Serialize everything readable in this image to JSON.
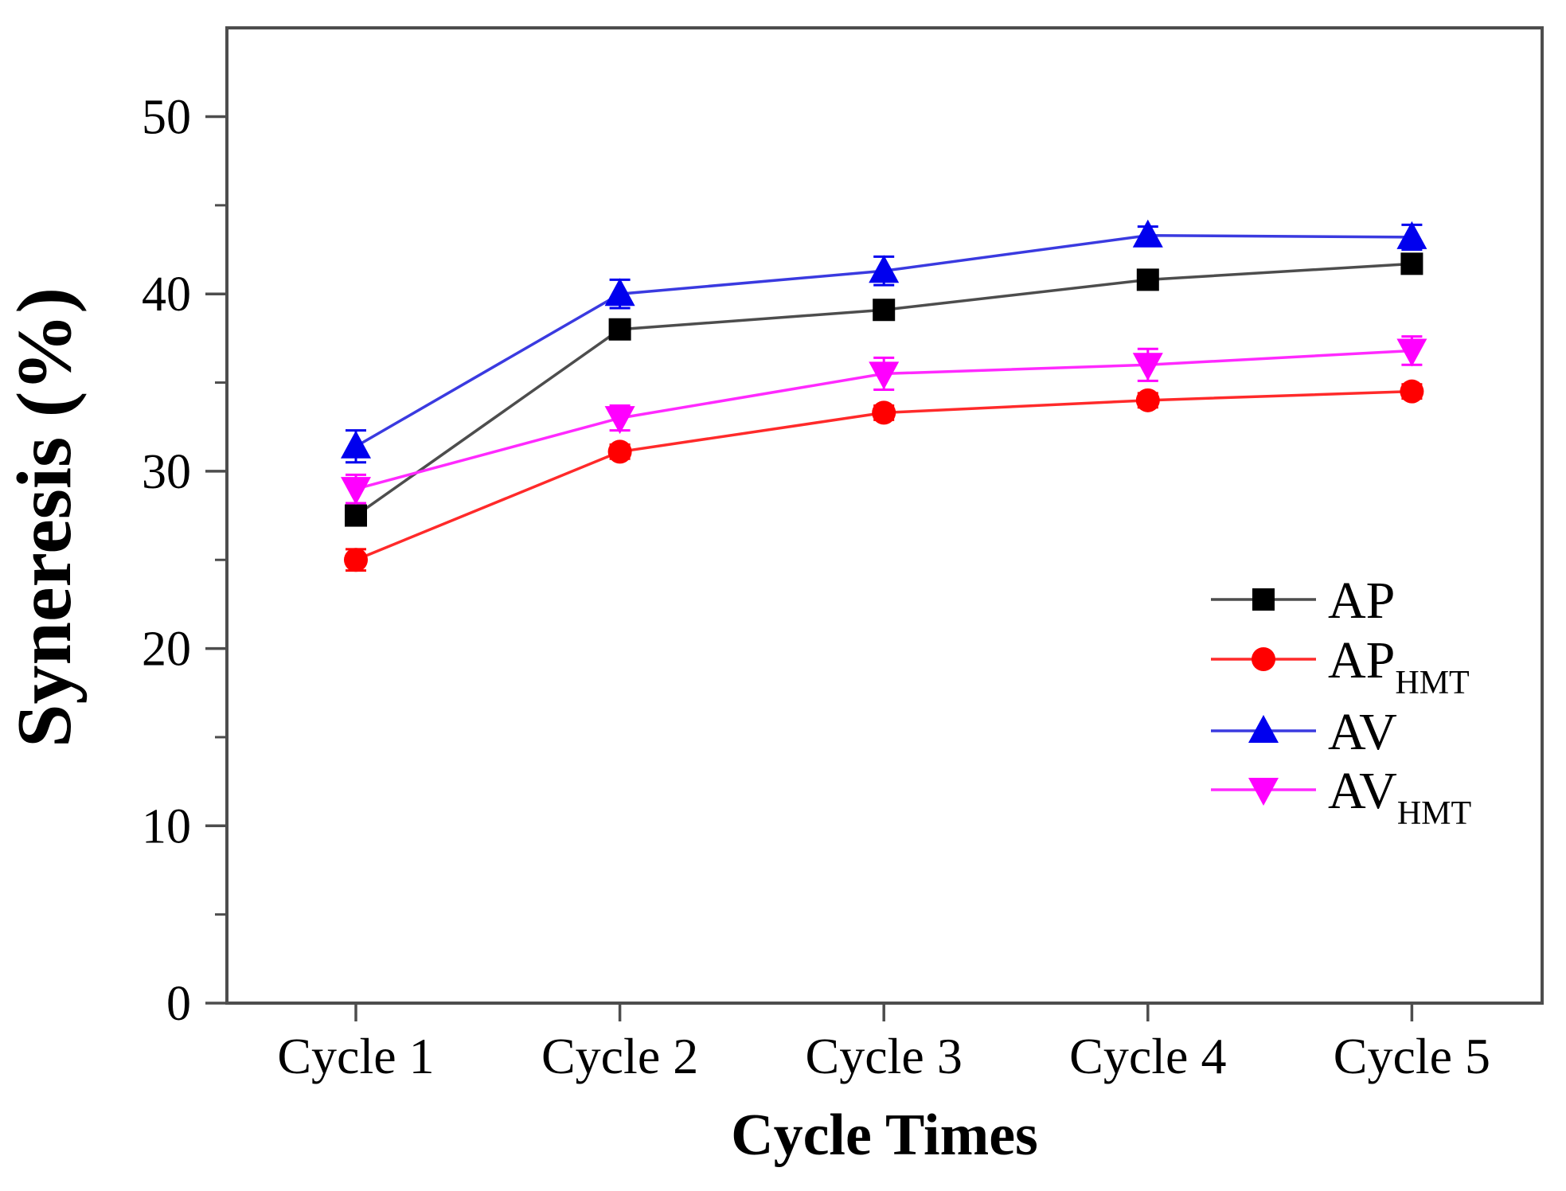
{
  "figure": {
    "background": "#ffffff",
    "border_color": "#4d4d4d",
    "text_color": "#000000"
  },
  "chart_data": {
    "type": "line",
    "title": "",
    "xlabel": "Cycle Times",
    "ylabel": "Syneresis (%)",
    "categories": [
      "Cycle 1",
      "Cycle 2",
      "Cycle 3",
      "Cycle 4",
      "Cycle 5"
    ],
    "y_axis": {
      "min": 0,
      "max": 55,
      "major_ticks": [
        0,
        10,
        20,
        30,
        40,
        50
      ],
      "major_tick_labels": [
        "0",
        "10",
        "20",
        "30",
        "40",
        "50"
      ],
      "minor_ticks": [
        5,
        15,
        25,
        35,
        45
      ]
    },
    "grid": false,
    "legend_position": "right-middle",
    "series": [
      {
        "name": "AP",
        "label_main": "AP",
        "label_sub": "",
        "marker": "square",
        "color": "#000000",
        "line_color": "#4d4d4d",
        "values": [
          27.5,
          38.0,
          39.1,
          40.8,
          41.7
        ],
        "errors": [
          0.5,
          0.4,
          0.4,
          0.4,
          0.4
        ]
      },
      {
        "name": "AP_HMT",
        "label_main": "AP",
        "label_sub": "HMT",
        "marker": "circle",
        "color": "#ff0000",
        "line_color": "#ff2a2a",
        "values": [
          25.0,
          31.1,
          33.3,
          34.0,
          34.5
        ],
        "errors": [
          0.6,
          0.4,
          0.4,
          0.4,
          0.4
        ]
      },
      {
        "name": "AV",
        "label_main": "AV",
        "label_sub": "",
        "marker": "triangle-up",
        "color": "#0000ee",
        "line_color": "#3a3ae0",
        "values": [
          31.4,
          40.0,
          41.3,
          43.3,
          43.2
        ],
        "errors": [
          0.9,
          0.8,
          0.8,
          0.5,
          0.7
        ]
      },
      {
        "name": "AV_HMT",
        "label_main": "AV",
        "label_sub": "HMT",
        "marker": "triangle-down",
        "color": "#ff00ff",
        "line_color": "#ff2aff",
        "values": [
          29.0,
          33.0,
          35.5,
          36.0,
          36.8
        ],
        "errors": [
          0.8,
          0.7,
          0.9,
          0.9,
          0.8
        ]
      }
    ]
  }
}
